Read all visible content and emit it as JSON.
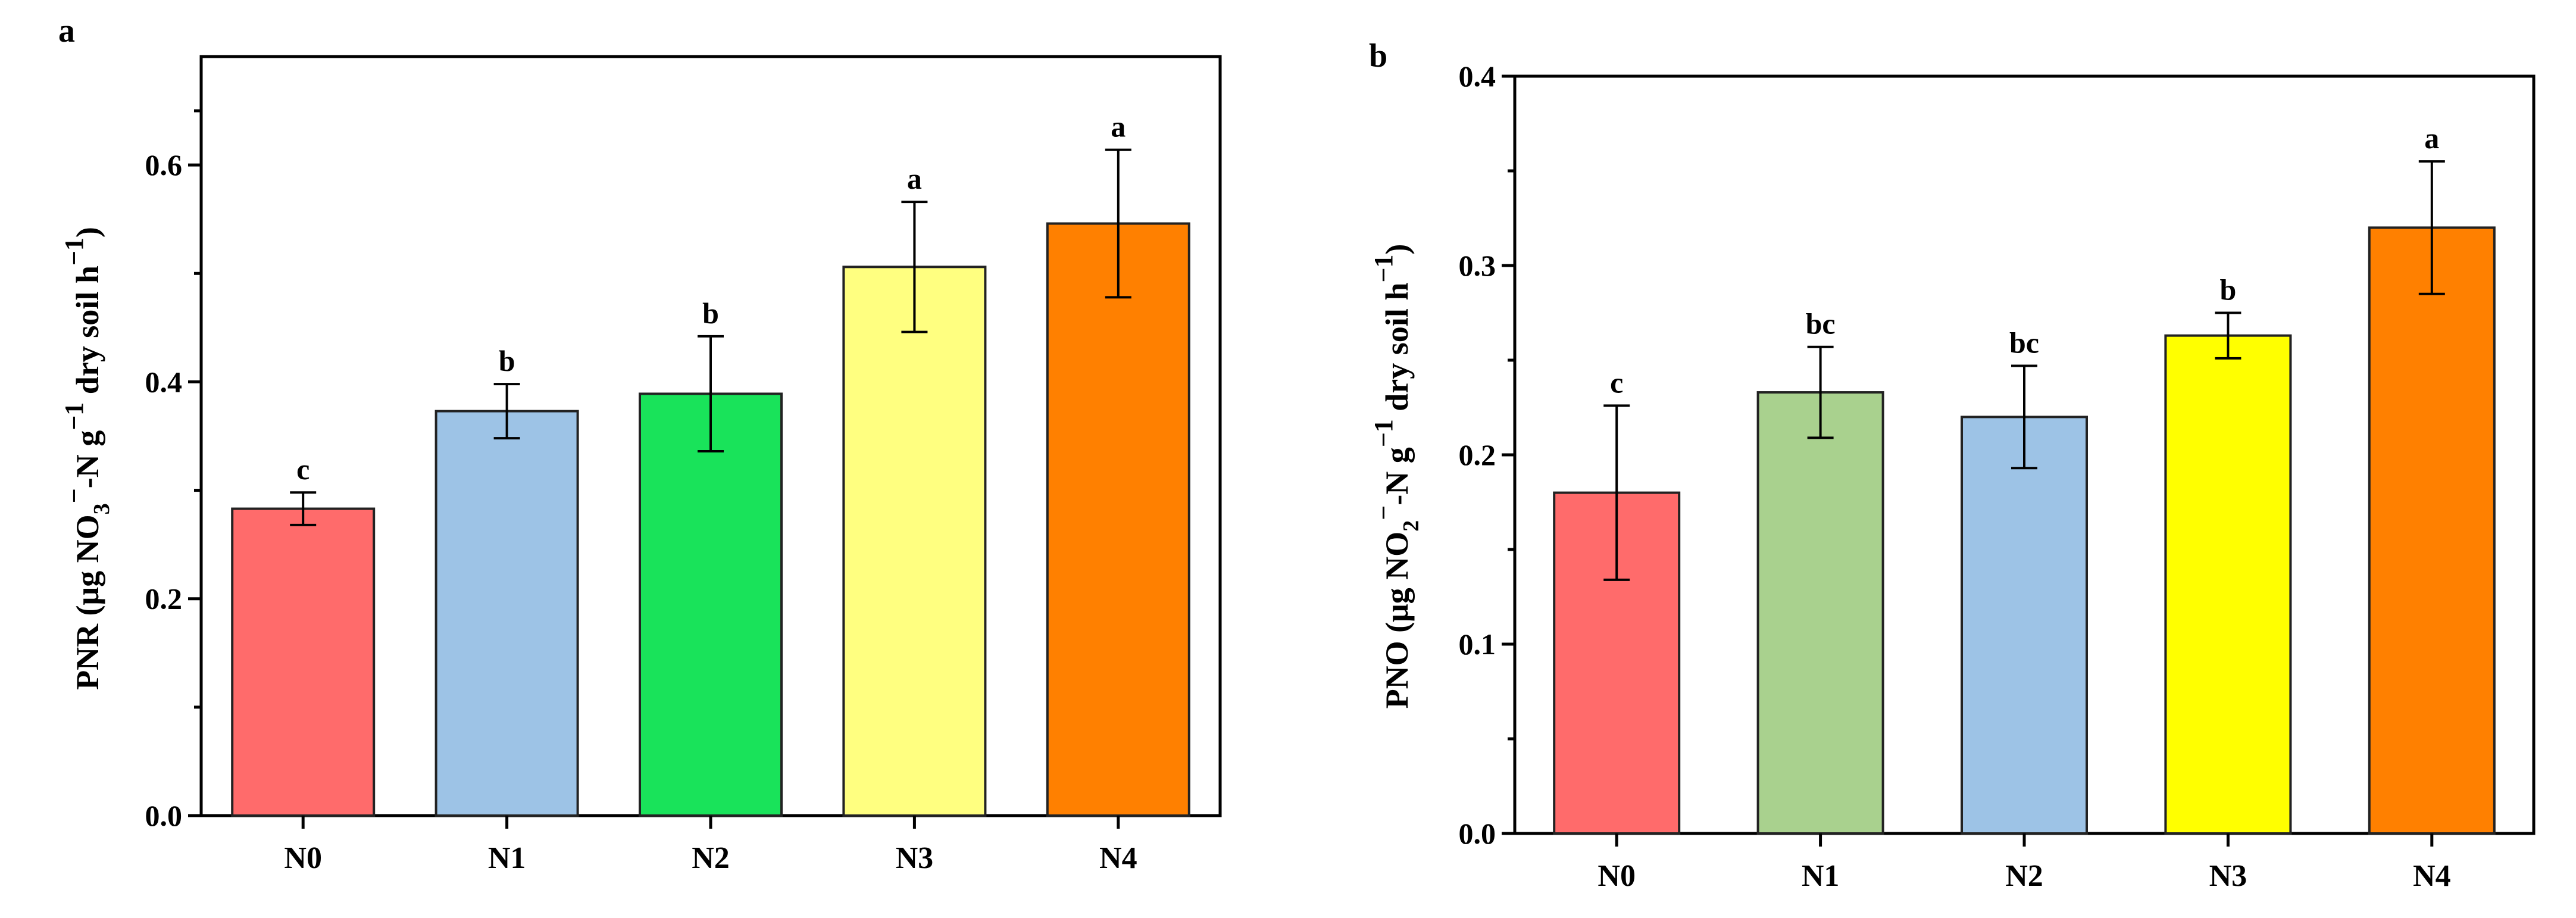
{
  "chart_data": [
    {
      "type": "bar",
      "panel": "a",
      "categories": [
        "N0",
        "N1",
        "N2",
        "N3",
        "N4"
      ],
      "values": [
        0.283,
        0.373,
        0.389,
        0.506,
        0.546
      ],
      "errors": [
        0.015,
        0.025,
        0.053,
        0.06,
        0.068
      ],
      "significance": [
        "c",
        "b",
        "b",
        "a",
        "a"
      ],
      "colors": [
        "#ff6b6b",
        "#9dc3e6",
        "#19e35a",
        "#ffff80",
        "#ff8000"
      ],
      "ylim": [
        0,
        0.7
      ],
      "yticks": [
        "0.0",
        "0.2",
        "0.4",
        "0.6"
      ],
      "ylabel": {
        "prefix": "PNR (μg NO",
        "sub": "3",
        "sup": "−",
        "middle": "-N g",
        "sup2": "−1",
        "suffix": " dry soil h",
        "sup3": "−1",
        "close": ")"
      },
      "xlabel": ""
    },
    {
      "type": "bar",
      "panel": "b",
      "categories": [
        "N0",
        "N1",
        "N2",
        "N3",
        "N4"
      ],
      "values": [
        0.18,
        0.233,
        0.22,
        0.263,
        0.32
      ],
      "errors": [
        0.046,
        0.024,
        0.027,
        0.012,
        0.035
      ],
      "significance": [
        "c",
        "bc",
        "bc",
        "b",
        "a"
      ],
      "colors": [
        "#ff6b6b",
        "#a9d18e",
        "#9dc3e6",
        "#ffff00",
        "#ff8000"
      ],
      "ylim": [
        0,
        0.4
      ],
      "yticks": [
        "0.0",
        "0.1",
        "0.2",
        "0.3",
        "0.4"
      ],
      "ylabel": {
        "prefix": "PNO (μg NO",
        "sub": "2",
        "sup": "−",
        "middle": "-N g",
        "sup2": "−1",
        "suffix": " dry soil h",
        "sup3": "−1",
        "close": ")"
      },
      "xlabel": ""
    }
  ]
}
